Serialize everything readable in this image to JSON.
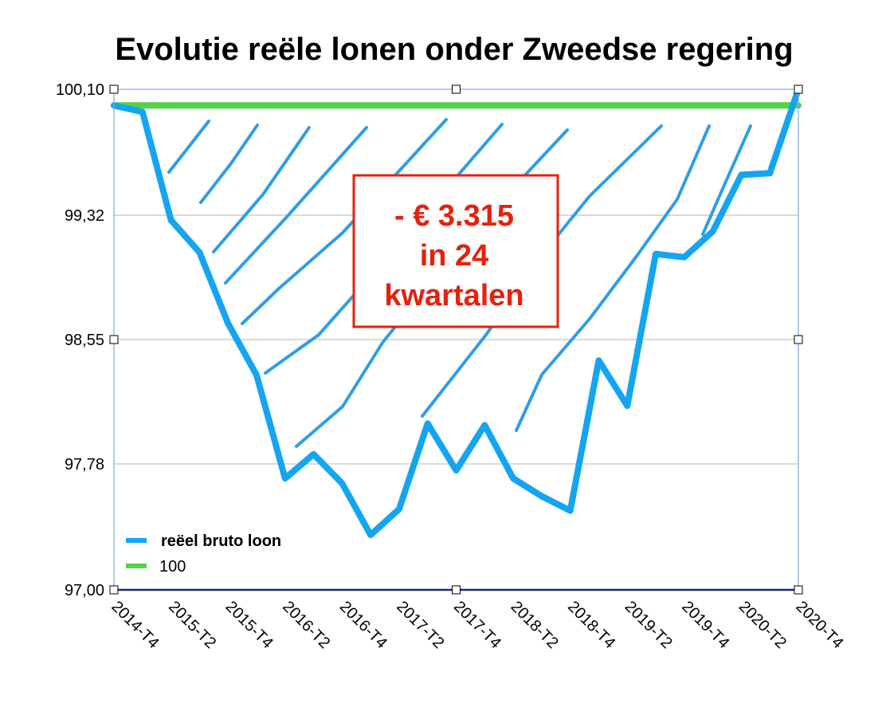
{
  "chart_data": {
    "type": "line",
    "title": "Evolutie reële lonen onder Zweedse regering",
    "xlabel": "",
    "ylabel": "",
    "ylim": [
      97.0,
      100.1
    ],
    "yticks": [
      "97,00",
      "97,78",
      "98,55",
      "99,32",
      "100,10"
    ],
    "ytick_values": [
      97.0,
      97.78,
      98.55,
      99.32,
      100.1
    ],
    "grid": true,
    "legend_position": "bottom-left",
    "categories": [
      "2014-T4",
      "2015-T1",
      "2015-T2",
      "2015-T3",
      "2015-T4",
      "2016-T1",
      "2016-T2",
      "2016-T3",
      "2016-T4",
      "2017-T1",
      "2017-T2",
      "2017-T3",
      "2017-T4",
      "2018-T1",
      "2018-T2",
      "2018-T3",
      "2018-T4",
      "2019-T1",
      "2019-T2",
      "2019-T3",
      "2019-T4",
      "2020-T1",
      "2020-T2",
      "2020-T3",
      "2020-T4"
    ],
    "xtick_labels": [
      "2014-T4",
      "2015-T2",
      "2015-T4",
      "2016-T2",
      "2016-T4",
      "2017-T2",
      "2017-T4",
      "2018-T2",
      "2018-T4",
      "2019-T2",
      "2019-T4",
      "2020-T2",
      "2020-T4"
    ],
    "series": [
      {
        "name": "reëel bruto loon",
        "color": "#14a5f0",
        "values": [
          100.0,
          99.96,
          99.29,
          99.09,
          98.65,
          98.33,
          97.69,
          97.84,
          97.66,
          97.34,
          97.5,
          98.03,
          97.74,
          98.02,
          97.69,
          97.58,
          97.49,
          98.42,
          98.14,
          99.08,
          99.06,
          99.22,
          99.57,
          99.58,
          100.1
        ]
      },
      {
        "name": "100",
        "color": "#52d24b",
        "values": [
          100.0,
          100.0,
          100.0,
          100.0,
          100.0,
          100.0,
          100.0,
          100.0,
          100.0,
          100.0,
          100.0,
          100.0,
          100.0,
          100.0,
          100.0,
          100.0,
          100.0,
          100.0,
          100.0,
          100.0,
          100.0,
          100.0,
          100.0,
          100.0,
          100.0
        ]
      }
    ],
    "annotation": {
      "lines": [
        "- € 3.315",
        "in 24",
        "kwartalen"
      ],
      "color": "#e8200c"
    }
  }
}
